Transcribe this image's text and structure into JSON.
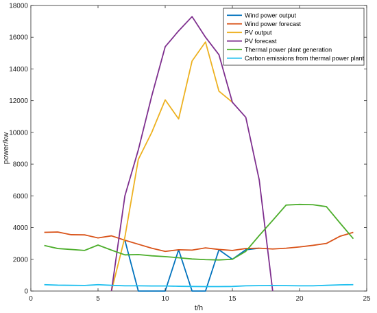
{
  "chart_data": {
    "type": "line",
    "title": "",
    "xlabel": "t/h",
    "ylabel": "power/kw",
    "xlim": [
      0,
      25
    ],
    "ylim": [
      0,
      18000
    ],
    "xticks": [
      0,
      5,
      10,
      15,
      20,
      25
    ],
    "yticks": [
      0,
      2000,
      4000,
      6000,
      8000,
      10000,
      12000,
      14000,
      16000,
      18000
    ],
    "grid": false,
    "legend_position": "top-right",
    "x": [
      1,
      2,
      3,
      4,
      5,
      6,
      7,
      8,
      9,
      10,
      11,
      12,
      13,
      14,
      15,
      16,
      17,
      18,
      19,
      20,
      21,
      22,
      23,
      24
    ],
    "series": [
      {
        "name": "Wind power output",
        "color": "#0072BD",
        "values": [
          null,
          null,
          null,
          null,
          null,
          null,
          3200,
          0,
          0,
          0,
          2600,
          0,
          0,
          2600,
          2000,
          2600,
          2700,
          null,
          null,
          null,
          null,
          null,
          null,
          null
        ]
      },
      {
        "name": "Wind power forecast",
        "color": "#D95319",
        "values": [
          3700,
          3720,
          3550,
          3540,
          3350,
          3480,
          3200,
          2950,
          2700,
          2500,
          2600,
          2580,
          2720,
          2620,
          2560,
          2680,
          2700,
          2650,
          2700,
          2780,
          2880,
          3000,
          3450,
          3700
        ]
      },
      {
        "name": "PV output",
        "color": "#EDB120",
        "values": [
          null,
          null,
          null,
          null,
          null,
          0,
          3400,
          8300,
          10000,
          12050,
          10850,
          14500,
          15700,
          12600,
          11900,
          null,
          null,
          null,
          null,
          null,
          null,
          null,
          null,
          null
        ]
      },
      {
        "name": "PV forecast",
        "color": "#7E2F8E",
        "values": [
          null,
          null,
          null,
          null,
          null,
          0,
          6000,
          8900,
          12300,
          15400,
          16400,
          17300,
          16000,
          14900,
          11900,
          10950,
          7000,
          0,
          null,
          null,
          null,
          null,
          null,
          null
        ]
      },
      {
        "name": "Thermal power plant generation",
        "color": "#4DAE2C",
        "values": [
          2870,
          2680,
          2620,
          2560,
          2900,
          2580,
          2280,
          2300,
          2220,
          2170,
          2100,
          2020,
          1980,
          1960,
          2000,
          2500,
          3500,
          4450,
          5420,
          5460,
          5440,
          5320,
          4300,
          3300
        ]
      },
      {
        "name": "Carbon emissions from thermal power plant",
        "color": "#1EBFEF",
        "values": [
          400,
          370,
          360,
          350,
          400,
          360,
          330,
          330,
          320,
          320,
          300,
          290,
          280,
          280,
          290,
          330,
          340,
          350,
          340,
          330,
          330,
          360,
          390,
          400
        ]
      }
    ]
  }
}
